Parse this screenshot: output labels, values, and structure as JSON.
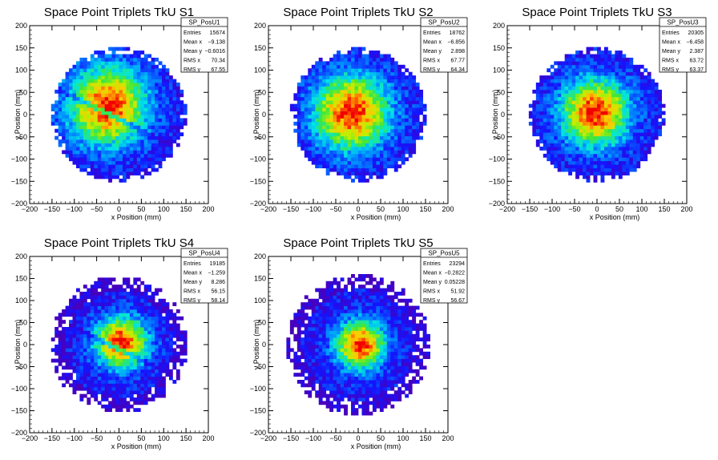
{
  "chart_data": [
    {
      "type": "heatmap",
      "title": "Space Point Triplets TkU S1",
      "xlabel": "x Position (mm)",
      "ylabel": "y Position (mm)",
      "xlim": [
        -200,
        200
      ],
      "ylim": [
        -200,
        200
      ],
      "xticks": [
        "−200",
        "−150",
        "−100",
        "−50",
        "0",
        "50",
        "100",
        "150",
        "200"
      ],
      "yticks": [
        "200",
        "150",
        "100",
        "50",
        "0",
        "−50",
        "−100",
        "−150",
        "−200"
      ],
      "stats": {
        "name": "SP_PosU1",
        "entries": "15674",
        "mean_x": "−9.138",
        "mean_y": "−0.6016",
        "rms_x": "70.34",
        "rms_y": "67.55"
      },
      "profile": {
        "center": [
          -25,
          20
        ],
        "radius": 150,
        "sigma": 60,
        "stripe": true,
        "halo": false
      }
    },
    {
      "type": "heatmap",
      "title": "Space Point Triplets TkU S2",
      "xlabel": "x Position (mm)",
      "ylabel": "y Position (mm)",
      "xlim": [
        -200,
        200
      ],
      "ylim": [
        -200,
        200
      ],
      "xticks": [
        "−200",
        "−150",
        "−100",
        "−50",
        "0",
        "50",
        "100",
        "150",
        "200"
      ],
      "yticks": [
        "200",
        "150",
        "100",
        "50",
        "0",
        "−50",
        "−100",
        "−150",
        "−200"
      ],
      "stats": {
        "name": "SP_PosU2",
        "entries": "18762",
        "mean_x": "−6.856",
        "mean_y": "2.898",
        "rms_x": "67.77",
        "rms_y": "64.34"
      },
      "profile": {
        "center": [
          -15,
          5
        ],
        "radius": 150,
        "sigma": 58,
        "stripe": false,
        "halo": false
      }
    },
    {
      "type": "heatmap",
      "title": "Space Point Triplets TkU S3",
      "xlabel": "x Position (mm)",
      "ylabel": "y Position (mm)",
      "xlim": [
        -200,
        200
      ],
      "ylim": [
        -200,
        200
      ],
      "xticks": [
        "−200",
        "−150",
        "−100",
        "−50",
        "0",
        "50",
        "100",
        "150",
        "200"
      ],
      "yticks": [
        "200",
        "150",
        "100",
        "50",
        "0",
        "−50",
        "−100",
        "−150",
        "−200"
      ],
      "stats": {
        "name": "SP_PosU3",
        "entries": "20305",
        "mean_x": "−6.458",
        "mean_y": "2.387",
        "rms_x": "63.72",
        "rms_y": "63.37"
      },
      "profile": {
        "center": [
          -5,
          5
        ],
        "radius": 150,
        "sigma": 52,
        "stripe": false,
        "halo": false
      }
    },
    {
      "type": "heatmap",
      "title": "Space Point Triplets TkU S4",
      "xlabel": "x Position (mm)",
      "ylabel": "y Position (mm)",
      "xlim": [
        -200,
        200
      ],
      "ylim": [
        -200,
        200
      ],
      "xticks": [
        "−200",
        "−150",
        "−100",
        "−50",
        "0",
        "50",
        "100",
        "150",
        "200"
      ],
      "yticks": [
        "200",
        "150",
        "100",
        "50",
        "0",
        "−50",
        "−100",
        "−150",
        "−200"
      ],
      "stats": {
        "name": "SP_PosU4",
        "entries": "19185",
        "mean_x": "−1.259",
        "mean_y": "8.286",
        "rms_x": "56.15",
        "rms_y": "58.14"
      },
      "profile": {
        "center": [
          5,
          5
        ],
        "radius": 155,
        "sigma": 40,
        "stripe": true,
        "halo": true
      }
    },
    {
      "type": "heatmap",
      "title": "Space Point Triplets TkU S5",
      "xlabel": "x Position (mm)",
      "ylabel": "y Position (mm)",
      "xlim": [
        -200,
        200
      ],
      "ylim": [
        -200,
        200
      ],
      "xticks": [
        "−200",
        "−150",
        "−100",
        "−50",
        "0",
        "50",
        "100",
        "150",
        "200"
      ],
      "yticks": [
        "200",
        "150",
        "100",
        "50",
        "0",
        "−50",
        "−100",
        "−150",
        "−200"
      ],
      "stats": {
        "name": "SP_PosU5",
        "entries": "23294",
        "mean_x": "−0.2822",
        "mean_y": "0.05228",
        "rms_x": "51.92",
        "rms_y": "56.67"
      },
      "profile": {
        "center": [
          5,
          0
        ],
        "radius": 160,
        "sigma": 38,
        "stripe": false,
        "halo": true
      }
    }
  ],
  "stat_labels": {
    "entries": "Entries",
    "mean_x": "Mean x",
    "mean_y": "Mean y",
    "rms_x": "RMS x",
    "rms_y": "RMS y"
  },
  "colors": {
    "frame": "#000000",
    "stats_bg": "#ffffff",
    "background": "#ffffff"
  }
}
